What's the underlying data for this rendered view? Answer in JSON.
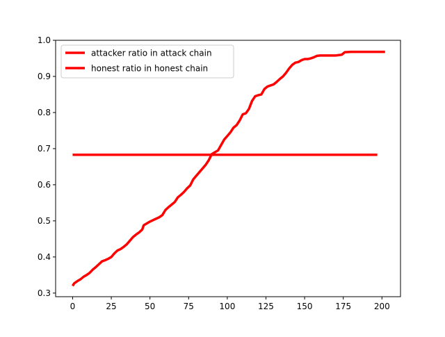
{
  "chart_data": {
    "type": "line",
    "title": "",
    "xlabel": "",
    "ylabel": "",
    "xlim": [
      -11,
      212
    ],
    "ylim": [
      0.29,
      1.0
    ],
    "xticks": [
      0,
      25,
      50,
      75,
      100,
      125,
      150,
      175,
      200
    ],
    "yticks": [
      0.3,
      0.4,
      0.5,
      0.6,
      0.7,
      0.8,
      0.9,
      1.0
    ],
    "xtick_labels": [
      "0",
      "25",
      "50",
      "75",
      "100",
      "125",
      "150",
      "175",
      "200"
    ],
    "ytick_labels": [
      "0.3",
      "0.4",
      "0.5",
      "0.6",
      "0.7",
      "0.8",
      "0.9",
      "1.0"
    ],
    "grid": false,
    "legend_position": "top-left",
    "series": [
      {
        "name": "attacker ratio in attack chain",
        "color": "#ff0000",
        "x": [
          0,
          1,
          3,
          5,
          7,
          9,
          11,
          13,
          15,
          17,
          19,
          21,
          23,
          25,
          27,
          29,
          31,
          33,
          35,
          37,
          39,
          41,
          43,
          45,
          46,
          48,
          50,
          52,
          54,
          56,
          58,
          60,
          62,
          64,
          66,
          68,
          70,
          72,
          74,
          76,
          78,
          80,
          82,
          84,
          86,
          88,
          90,
          92,
          94,
          96,
          98,
          100,
          102,
          104,
          106,
          108,
          110,
          112,
          114,
          116,
          118,
          120,
          122,
          124,
          126,
          128,
          130,
          132,
          134,
          136,
          138,
          140,
          142,
          144,
          146,
          148,
          150,
          152,
          154,
          156,
          158,
          160,
          165,
          170,
          174,
          176,
          180,
          190,
          202
        ],
        "y": [
          0.32,
          0.327,
          0.333,
          0.338,
          0.345,
          0.35,
          0.356,
          0.365,
          0.372,
          0.38,
          0.388,
          0.391,
          0.395,
          0.4,
          0.41,
          0.418,
          0.422,
          0.428,
          0.435,
          0.445,
          0.455,
          0.462,
          0.468,
          0.476,
          0.488,
          0.493,
          0.498,
          0.502,
          0.506,
          0.51,
          0.516,
          0.53,
          0.538,
          0.545,
          0.552,
          0.565,
          0.572,
          0.58,
          0.59,
          0.598,
          0.615,
          0.625,
          0.635,
          0.645,
          0.655,
          0.668,
          0.685,
          0.69,
          0.695,
          0.71,
          0.725,
          0.735,
          0.745,
          0.758,
          0.765,
          0.778,
          0.795,
          0.798,
          0.81,
          0.832,
          0.845,
          0.848,
          0.85,
          0.865,
          0.872,
          0.875,
          0.878,
          0.885,
          0.893,
          0.9,
          0.91,
          0.922,
          0.932,
          0.938,
          0.94,
          0.945,
          0.948,
          0.948,
          0.95,
          0.953,
          0.957,
          0.958,
          0.958,
          0.958,
          0.96,
          0.967,
          0.968,
          0.968,
          0.968
        ]
      },
      {
        "name": "honest ratio in honest chain",
        "color": "#ff0000",
        "x": [
          0,
          197
        ],
        "y": [
          0.683,
          0.683
        ]
      }
    ]
  }
}
